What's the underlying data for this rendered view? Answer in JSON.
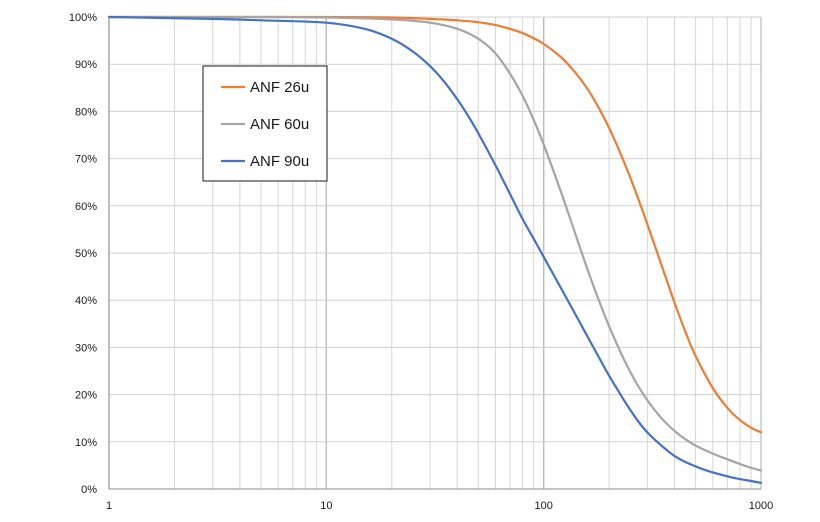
{
  "chart_data": {
    "type": "line",
    "title": "",
    "xlabel": "",
    "ylabel": "",
    "x_scale": "log",
    "xlim": [
      1,
      1000
    ],
    "ylim": [
      0,
      100
    ],
    "grid": true,
    "x_ticks": [
      "1",
      "10",
      "100",
      "1000"
    ],
    "y_ticks": [
      "0%",
      "10%",
      "20%",
      "30%",
      "40%",
      "50%",
      "60%",
      "70%",
      "80%",
      "90%",
      "100%"
    ],
    "legend_position": "top-left",
    "series": [
      {
        "name": "ANF 26u",
        "color": "#ED7D31",
        "x": [
          1,
          5,
          10,
          20,
          30,
          40,
          50,
          60,
          70,
          80,
          90,
          100,
          120,
          140,
          160,
          180,
          200,
          230,
          260,
          300,
          350,
          400,
          450,
          500,
          600,
          700,
          800,
          900,
          1000
        ],
        "y": [
          100,
          100,
          100,
          99.9,
          99.6,
          99.3,
          98.9,
          98.3,
          97.5,
          96.6,
          95.5,
          94.3,
          91.5,
          88.2,
          84.6,
          80.6,
          76.5,
          70.2,
          64.0,
          56.1,
          47.2,
          39.5,
          33.2,
          28.2,
          21.4,
          17.2,
          14.6,
          13.0,
          12.0
        ]
      },
      {
        "name": "ANF 60u",
        "color": "#A5A5A5",
        "x": [
          1,
          5,
          10,
          20,
          30,
          40,
          50,
          60,
          70,
          80,
          90,
          100,
          120,
          140,
          160,
          180,
          200,
          230,
          260,
          300,
          350,
          400,
          450,
          500,
          600,
          700,
          800,
          900,
          1000
        ],
        "y": [
          100,
          100,
          99.9,
          99.5,
          98.8,
          97.5,
          95.4,
          92.3,
          88.0,
          83.3,
          78.2,
          73.0,
          63.0,
          54.0,
          46.2,
          39.8,
          34.5,
          28.2,
          23.4,
          18.8,
          14.9,
          12.3,
          10.5,
          9.2,
          7.5,
          6.3,
          5.3,
          4.5,
          3.9
        ]
      },
      {
        "name": "ANF 90u",
        "color": "#4472C4",
        "x": [
          1,
          3,
          5,
          10,
          15,
          20,
          25,
          30,
          35,
          40,
          45,
          50,
          60,
          70,
          80,
          90,
          100,
          120,
          140,
          160,
          180,
          200,
          250,
          300,
          400,
          500,
          600,
          700,
          800,
          900,
          1000
        ],
        "y": [
          100,
          99.6,
          99.3,
          98.8,
          97.5,
          95.4,
          92.7,
          89.6,
          86.2,
          82.6,
          79.0,
          75.4,
          68.6,
          62.5,
          57.2,
          53.0,
          49.2,
          42.6,
          37.0,
          32.1,
          27.8,
          24.0,
          16.8,
          12.0,
          7.0,
          4.8,
          3.5,
          2.7,
          2.1,
          1.7,
          1.3
        ]
      }
    ]
  }
}
